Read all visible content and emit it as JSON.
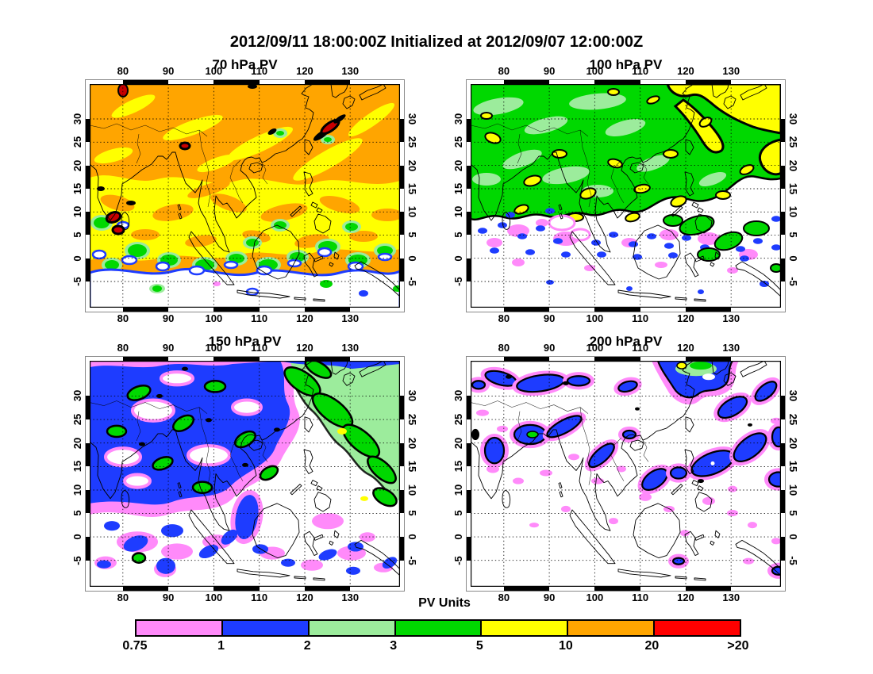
{
  "figure": {
    "title": "2012/09/11 18:00:00Z Initialized at 2012/09/07 12:00:00Z"
  },
  "panels": [
    {
      "id": "70hpa",
      "title": "70 hPa PV"
    },
    {
      "id": "100hpa",
      "title": "100 hPa PV"
    },
    {
      "id": "150hpa",
      "title": "150 hPa PV"
    },
    {
      "id": "200hpa",
      "title": "200 hPa PV"
    }
  ],
  "axes": {
    "lon_labels": [
      "80",
      "90",
      "100",
      "110",
      "120",
      "130"
    ],
    "lat_labels": [
      "30",
      "25",
      "20",
      "15",
      "10",
      "5",
      "0",
      "-5"
    ]
  },
  "colorbar": {
    "title": "PV Units",
    "labels": [
      "0.75",
      "1",
      "2",
      "3",
      "5",
      "10",
      "20",
      ">20"
    ],
    "colors": [
      "#FF8AFA",
      "#1E3CFF",
      "#9CEC9C",
      "#00D800",
      "#FFFF00",
      "#FFA500",
      "#FF0000"
    ]
  },
  "palette": {
    "pink": "#FF8AFA",
    "blue": "#1E3CFF",
    "light_green": "#9CEC9C",
    "green": "#00D800",
    "yellow": "#FFFF00",
    "orange": "#FFA500",
    "red": "#FF0000",
    "dark_red_spot": "#C80000"
  },
  "chart_data": {
    "type": "heatmap",
    "title": "2012/09/11 18:00:00Z Initialized at 2012/09/07 12:00:00Z",
    "subplots": [
      {
        "title": "70 hPa PV",
        "summary": "10-20 PVU (orange) north of ~18N; 5-10 PVU (yellow) band ~2-18N with orange blobs; 3-5 PVU (green) blobs near 0-5N with 1-2 PVU rings; <0.75 PVU (white) south of ~0N; isolated >20 PVU dark-red spots near 8N/78E, 29N/113E, 23N/94E"
      },
      {
        "title": "100 hPa PV",
        "summary": "3-5 PVU (green) over most of 8-35N; 5-10 PVU (yellow) northeast corner, along a 22-33N diagonal streak and right edge, plus many small outlined yellow blobs; 2-3 PVU (light green) patches; 1-2 PVU (blue) speckle band ~5-15N with 0.75-1 (pink) bits; <0.75 (white) south of ~5N"
      },
      {
        "title": "150 hPa PV",
        "summary": "1-2 PVU (blue) mass with 0.75-1 (pink) fringes over ~18-35N west/center; 2-3 PVU (light green) region northeast with 3-5 PVU (green) black-outlined blobs; <0.75 (white) tropics with scattered 1-2 PVU blobs; tiny 5-10 PVU yellow dots"
      },
      {
        "title": "200 hPa PV",
        "summary": "mostly <0.75 PVU (white); scattered black-outlined 1-2 PVU (blue) blobs with 0.75-1 (pink) halos over 18-35N and along the East Asia coast; small 2-5 PVU green patch with 5-10 PVU dot near 33N/112E"
      }
    ],
    "x_ticks": [
      80,
      90,
      100,
      110,
      120,
      130
    ],
    "x_range": [
      73,
      141
    ],
    "x_units": "degrees East",
    "y_ticks": [
      30,
      25,
      20,
      15,
      10,
      5,
      0,
      -5
    ],
    "y_range": [
      -10.5,
      37
    ],
    "y_units": "degrees North",
    "grid": "dotted",
    "legend": {
      "label": "PV Units",
      "boundaries": [
        0.75,
        1,
        2,
        3,
        5,
        10,
        20
      ],
      "open_ended_last": true,
      "colors": [
        "#FF8AFA",
        "#1E3CFF",
        "#9CEC9C",
        "#00D800",
        "#FFFF00",
        "#FFA500",
        "#FF0000"
      ],
      "position": "bottom"
    }
  }
}
